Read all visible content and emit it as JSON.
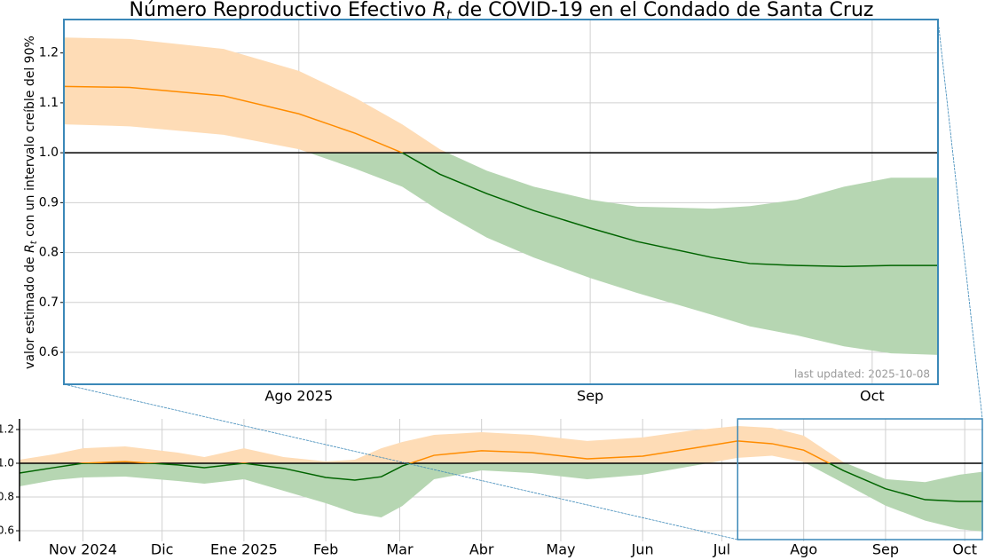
{
  "chart_data": [
    {
      "type": "band-line",
      "title": [
        "Número Reproductivo Efectivo ",
        "R",
        "t",
        " de COVID-19 en el Condado de Santa Cruz"
      ],
      "ylabel": [
        "valor estimado de ",
        "R",
        "t",
        " con un intervalo creíble del 90%"
      ],
      "annotation": "last updated: 2025-10-08",
      "x": [
        187,
        194,
        204,
        212,
        218,
        223,
        227,
        232,
        237,
        243,
        248,
        256,
        260,
        265,
        270,
        275,
        280
      ],
      "values": [
        1.133,
        1.131,
        1.114,
        1.078,
        1.039,
        1.0,
        0.957,
        0.918,
        0.884,
        0.849,
        0.822,
        0.79,
        0.778,
        0.774,
        0.772,
        0.774,
        0.774
      ],
      "upper": [
        1.231,
        1.228,
        1.208,
        1.164,
        1.11,
        1.057,
        1.007,
        0.964,
        0.932,
        0.906,
        0.892,
        0.888,
        0.893,
        0.906,
        0.932,
        0.95,
        0.95
      ],
      "lower": [
        1.057,
        1.053,
        1.036,
        1.007,
        0.968,
        0.932,
        0.883,
        0.83,
        0.79,
        0.749,
        0.719,
        0.675,
        0.652,
        0.634,
        0.612,
        0.598,
        0.595
      ],
      "threshold": 1,
      "color_above": "#ff8c00",
      "color_below": "#006400",
      "band_above": "#fedcb6",
      "band_below": "#b6d6b2",
      "xlim": [
        187,
        280
      ],
      "ylim": [
        0.536,
        1.267
      ],
      "xticks": [
        {
          "value": 212,
          "label": "Ago 2025"
        },
        {
          "value": 243,
          "label": "Sep"
        },
        {
          "value": 273,
          "label": "Oct"
        }
      ],
      "yticks": [
        0.6,
        0.7,
        0.8,
        0.9,
        {
          "value": 1,
          "label": "1.0"
        },
        1.1,
        1.2
      ],
      "grid": true
    },
    {
      "type": "band-line",
      "x": [
        -85,
        -72,
        -61,
        -45,
        -25,
        -15,
        0,
        15,
        31,
        42,
        52,
        60,
        72,
        90,
        109,
        130,
        151,
        170,
        187,
        200,
        212,
        227,
        243,
        258,
        271,
        280
      ],
      "values": [
        0.942,
        0.974,
        1.0,
        1.01,
        0.99,
        0.974,
        1.0,
        0.97,
        0.916,
        0.9,
        0.92,
        0.984,
        1.047,
        1.074,
        1.063,
        1.026,
        1.042,
        1.089,
        1.132,
        1.116,
        1.078,
        0.957,
        0.849,
        0.784,
        0.774,
        0.774
      ],
      "upper": [
        1.021,
        1.053,
        1.089,
        1.1,
        1.063,
        1.037,
        1.089,
        1.037,
        1.011,
        1.021,
        1.089,
        1.126,
        1.168,
        1.184,
        1.168,
        1.132,
        1.153,
        1.195,
        1.221,
        1.21,
        1.164,
        1.007,
        0.906,
        0.888,
        0.932,
        0.95
      ],
      "lower": [
        0.863,
        0.9,
        0.916,
        0.921,
        0.895,
        0.879,
        0.905,
        0.837,
        0.763,
        0.705,
        0.679,
        0.747,
        0.905,
        0.958,
        0.942,
        0.905,
        0.932,
        0.984,
        1.032,
        1.045,
        1.007,
        0.883,
        0.749,
        0.66,
        0.61,
        0.595
      ],
      "threshold": 1,
      "color_above": "#ff8c00",
      "color_below": "#006400",
      "band_above": "#fedcb6",
      "band_below": "#b6d6b2",
      "xlim": [
        -85,
        280
      ],
      "ylim": [
        0.537,
        1.263
      ],
      "xticks": [
        {
          "value": -61,
          "label": "Nov 2024"
        },
        {
          "value": -31,
          "label": "Dic"
        },
        {
          "value": 0,
          "label": "Ene 2025"
        },
        {
          "value": 31,
          "label": "Feb"
        },
        {
          "value": 59,
          "label": "Mar"
        },
        {
          "value": 90,
          "label": "Abr"
        },
        {
          "value": 120,
          "label": "May"
        },
        {
          "value": 151,
          "label": "Jun"
        },
        {
          "value": 181,
          "label": "Jul"
        },
        {
          "value": 212,
          "label": "Ago"
        },
        {
          "value": 243,
          "label": "Sep"
        },
        {
          "value": 273,
          "label": "Oct"
        }
      ],
      "yticks": [
        0.6,
        0.8,
        {
          "value": 1,
          "label": "1.0"
        },
        1.2
      ],
      "grid": true
    }
  ]
}
